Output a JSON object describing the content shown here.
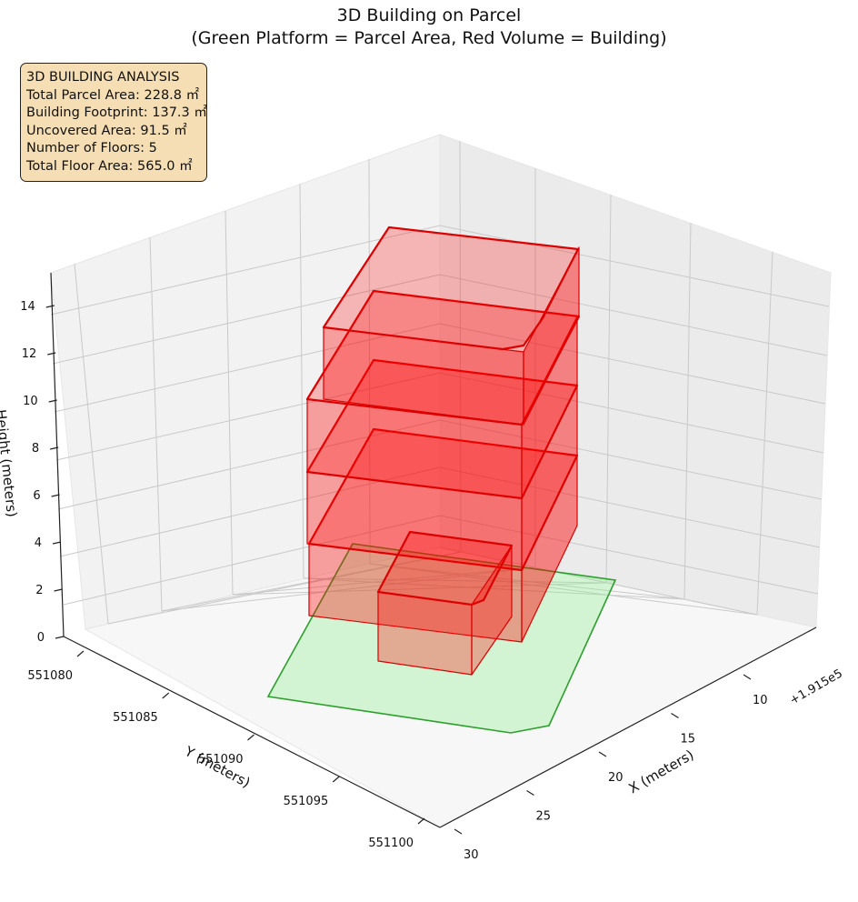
{
  "chart_data": {
    "type": "3d-volume",
    "title": "3D Building on Parcel",
    "subtitle": "(Green Platform = Parcel Area, Red Volume = Building)",
    "info_box": {
      "heading": "3D BUILDING ANALYSIS",
      "lines": [
        "Total Parcel Area: 228.8 ㎡",
        "Building Footprint: 137.3 ㎡",
        "Uncovered Area: 91.5 ㎡",
        "Number of Floors: 5",
        "Total Floor Area: 565.0 ㎡"
      ]
    },
    "axes": {
      "x": {
        "label": "X (meters)",
        "offset_label": "+1.915e5",
        "ticks": [
          10,
          15,
          20,
          25,
          30
        ],
        "tick_labels": [
          "10",
          "15",
          "20",
          "25",
          "30"
        ]
      },
      "y": {
        "label": "Y (meters)",
        "ticks": [
          551080,
          551085,
          551090,
          551095,
          551100
        ],
        "tick_labels": [
          "551080",
          "551085",
          "551090",
          "551095",
          "551100"
        ]
      },
      "z": {
        "label": "Height (meters)",
        "ticks": [
          0,
          2,
          4,
          6,
          8,
          10,
          12,
          14
        ],
        "tick_labels": [
          "0",
          "2",
          "4",
          "6",
          "8",
          "10",
          "12",
          "14"
        ]
      }
    },
    "grid": true,
    "series": [
      {
        "name": "Parcel Area",
        "kind": "platform",
        "z": 0,
        "color": "#2ca02c",
        "fill": "#90ee90"
      },
      {
        "name": "Building",
        "kind": "floor-stack",
        "floors": 5,
        "color": "#dd0000",
        "fill": "#ff0000"
      }
    ]
  }
}
